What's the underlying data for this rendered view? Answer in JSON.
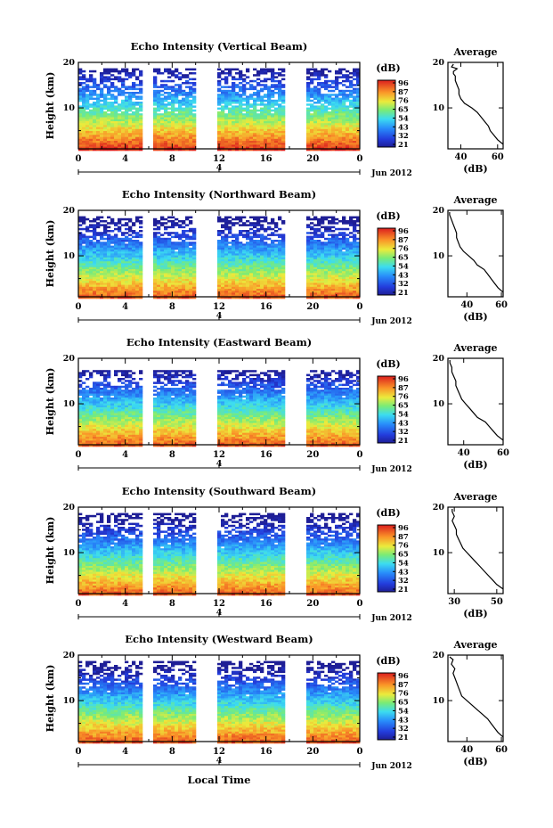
{
  "x_axis_title": "Local Time",
  "date_label": "Jun 2012",
  "day_label": "4",
  "colorbar_unit": "(dB)",
  "chart_data": [
    {
      "type": "heatmap",
      "title": "Echo Intensity (Vertical Beam)",
      "ylabel": "Height (km)",
      "xlabel": "Local Time",
      "x_ticks": [
        "0",
        "4",
        "8",
        "12",
        "16",
        "20",
        "0"
      ],
      "y_ticks": [
        "10",
        "20"
      ],
      "xlim": [
        0,
        24
      ],
      "ylim": [
        1,
        20
      ],
      "data_gaps_hours": [
        [
          5.5,
          6.3
        ],
        [
          10.0,
          11.7
        ],
        [
          17.7,
          19.5
        ]
      ],
      "colorbar_ticks": [
        "96",
        "87",
        "76",
        "65",
        "54",
        "43",
        "32",
        "21"
      ],
      "colorbar_range": [
        21,
        96
      ],
      "echo_top_km": 18.5,
      "profile": {
        "title": "Average",
        "xlabel": "(dB)",
        "x_ticks": [
          "40",
          "60"
        ],
        "y_ticks": [
          "10",
          "20"
        ],
        "xlim": [
          33,
          63
        ],
        "points": [
          [
            63,
            2
          ],
          [
            60,
            3
          ],
          [
            58,
            4
          ],
          [
            56,
            5
          ],
          [
            55,
            6
          ],
          [
            53,
            7
          ],
          [
            51,
            8
          ],
          [
            49,
            9
          ],
          [
            46,
            10
          ],
          [
            42,
            11
          ],
          [
            40,
            12
          ],
          [
            39,
            13
          ],
          [
            39,
            14
          ],
          [
            38,
            15
          ],
          [
            37,
            16
          ],
          [
            37,
            17
          ],
          [
            36,
            17.5
          ],
          [
            36,
            18
          ],
          [
            38,
            18.6
          ],
          [
            35,
            19
          ],
          [
            36,
            19.6
          ]
        ]
      }
    },
    {
      "type": "heatmap",
      "title": "Echo Intensity (Northward Beam)",
      "ylabel": "Height (km)",
      "xlabel": "Local Time",
      "x_ticks": [
        "0",
        "4",
        "8",
        "12",
        "16",
        "20",
        "0"
      ],
      "y_ticks": [
        "10",
        "20"
      ],
      "xlim": [
        0,
        24
      ],
      "ylim": [
        1,
        20
      ],
      "data_gaps_hours": [
        [
          5.5,
          6.3
        ],
        [
          10.0,
          11.7
        ],
        [
          17.7,
          19.5
        ]
      ],
      "colorbar_ticks": [
        "96",
        "87",
        "76",
        "65",
        "54",
        "43",
        "32",
        "21"
      ],
      "colorbar_range": [
        21,
        96
      ],
      "echo_top_km": 18.5,
      "profile": {
        "title": "Average",
        "xlabel": "(dB)",
        "x_ticks": [
          "40",
          "60"
        ],
        "y_ticks": [
          "10",
          "20"
        ],
        "xlim": [
          29,
          61
        ],
        "points": [
          [
            61,
            2
          ],
          [
            58,
            3
          ],
          [
            56,
            4
          ],
          [
            54,
            5
          ],
          [
            52,
            6
          ],
          [
            50,
            7
          ],
          [
            46,
            8
          ],
          [
            44,
            9
          ],
          [
            41,
            10
          ],
          [
            38,
            11
          ],
          [
            36,
            12
          ],
          [
            35,
            13
          ],
          [
            34,
            14
          ],
          [
            34,
            15
          ],
          [
            33,
            16
          ],
          [
            32,
            17
          ],
          [
            31,
            18
          ],
          [
            30,
            19
          ],
          [
            30,
            19.6
          ]
        ]
      }
    },
    {
      "type": "heatmap",
      "title": "Echo Intensity (Eastward Beam)",
      "ylabel": "Height (km)",
      "xlabel": "Local Time",
      "x_ticks": [
        "0",
        "4",
        "8",
        "12",
        "16",
        "20",
        "0"
      ],
      "y_ticks": [
        "10",
        "20"
      ],
      "xlim": [
        0,
        24
      ],
      "ylim": [
        1,
        20
      ],
      "data_gaps_hours": [
        [
          5.5,
          6.3
        ],
        [
          10.0,
          11.7
        ],
        [
          17.7,
          19.5
        ]
      ],
      "colorbar_ticks": [
        "96",
        "87",
        "76",
        "65",
        "54",
        "43",
        "32",
        "21"
      ],
      "colorbar_range": [
        21,
        96
      ],
      "echo_top_km": 17.5,
      "profile": {
        "title": "Average",
        "xlabel": "(dB)",
        "x_ticks": [
          "40",
          "60"
        ],
        "y_ticks": [
          "10",
          "20"
        ],
        "xlim": [
          32,
          60
        ],
        "points": [
          [
            60,
            2
          ],
          [
            57,
            3
          ],
          [
            55,
            4
          ],
          [
            53,
            5
          ],
          [
            51,
            6
          ],
          [
            47,
            7
          ],
          [
            45,
            8
          ],
          [
            43,
            9
          ],
          [
            41,
            10
          ],
          [
            39,
            11
          ],
          [
            38,
            12
          ],
          [
            37,
            13
          ],
          [
            36,
            14
          ],
          [
            36,
            15
          ],
          [
            35,
            16
          ],
          [
            34,
            17
          ],
          [
            34,
            18
          ],
          [
            33,
            19
          ],
          [
            33,
            19.6
          ]
        ]
      }
    },
    {
      "type": "heatmap",
      "title": "Echo Intensity (Southward Beam)",
      "ylabel": "Height (km)",
      "xlabel": "Local Time",
      "x_ticks": [
        "0",
        "4",
        "8",
        "12",
        "16",
        "20",
        "0"
      ],
      "y_ticks": [
        "10",
        "20"
      ],
      "xlim": [
        0,
        24
      ],
      "ylim": [
        1,
        20
      ],
      "data_gaps_hours": [
        [
          5.5,
          6.3
        ],
        [
          10.0,
          11.7
        ],
        [
          17.7,
          19.5
        ]
      ],
      "colorbar_ticks": [
        "96",
        "87",
        "76",
        "65",
        "54",
        "43",
        "32",
        "21"
      ],
      "colorbar_range": [
        21,
        96
      ],
      "echo_top_km": 18.5,
      "profile": {
        "title": "Average",
        "xlabel": "(dB)",
        "x_ticks": [
          "30",
          "50"
        ],
        "y_ticks": [
          "10",
          "20"
        ],
        "xlim": [
          27,
          53
        ],
        "points": [
          [
            53,
            2
          ],
          [
            50,
            3
          ],
          [
            48,
            4
          ],
          [
            46,
            5
          ],
          [
            44,
            6
          ],
          [
            42,
            7
          ],
          [
            40,
            8
          ],
          [
            38,
            9
          ],
          [
            36,
            10
          ],
          [
            34,
            11
          ],
          [
            33,
            12
          ],
          [
            32,
            13
          ],
          [
            31,
            14
          ],
          [
            31,
            15
          ],
          [
            30,
            16
          ],
          [
            29,
            17
          ],
          [
            30,
            18
          ],
          [
            29,
            19
          ],
          [
            29,
            19.6
          ]
        ]
      }
    },
    {
      "type": "heatmap",
      "title": "Echo Intensity (Westward Beam)",
      "ylabel": "Height (km)",
      "xlabel": "Local Time",
      "x_ticks": [
        "0",
        "4",
        "8",
        "12",
        "16",
        "20",
        "0"
      ],
      "y_ticks": [
        "10",
        "20"
      ],
      "xlim": [
        0,
        24
      ],
      "ylim": [
        1,
        20
      ],
      "data_gaps_hours": [
        [
          5.5,
          6.3
        ],
        [
          10.0,
          11.7
        ],
        [
          17.7,
          19.5
        ]
      ],
      "colorbar_ticks": [
        "96",
        "87",
        "76",
        "65",
        "54",
        "43",
        "32",
        "21"
      ],
      "colorbar_range": [
        21,
        96
      ],
      "echo_top_km": 18.5,
      "profile": {
        "title": "Average",
        "xlabel": "(dB)",
        "x_ticks": [
          "40",
          "60"
        ],
        "y_ticks": [
          "10",
          "20"
        ],
        "xlim": [
          29,
          61
        ],
        "points": [
          [
            61,
            2
          ],
          [
            58,
            3
          ],
          [
            56,
            4
          ],
          [
            54,
            5
          ],
          [
            52,
            6
          ],
          [
            49,
            7
          ],
          [
            46,
            8
          ],
          [
            43,
            9
          ],
          [
            40,
            10
          ],
          [
            37,
            11
          ],
          [
            36,
            12
          ],
          [
            35,
            13
          ],
          [
            34,
            14
          ],
          [
            33,
            15
          ],
          [
            32,
            16
          ],
          [
            33,
            17
          ],
          [
            31,
            18
          ],
          [
            32,
            19
          ],
          [
            30,
            19.6
          ]
        ]
      }
    }
  ]
}
